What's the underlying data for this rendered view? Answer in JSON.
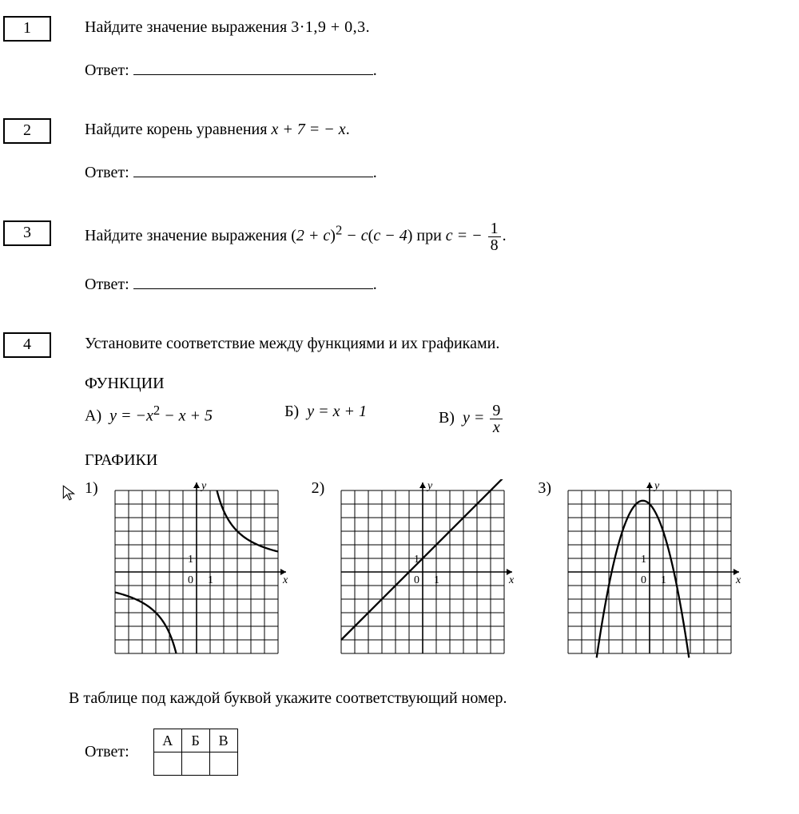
{
  "background_color": "#ffffff",
  "text_color": "#000000",
  "font_family": "Times New Roman",
  "font_size_pt": 15,
  "problems": [
    {
      "number": "1",
      "prompt_pre": "Найдите значение выражения ",
      "expression": "3·1,9 + 0,3",
      "prompt_post": ".",
      "answer_label": "Ответ:"
    },
    {
      "number": "2",
      "prompt_pre": "Найдите корень уравнения ",
      "expression": "x + 7 = − x",
      "prompt_post": ".",
      "answer_label": "Ответ:"
    },
    {
      "number": "3",
      "prompt_pre": "Найдите значение выражения ",
      "expr_main": "(2 + c)",
      "expr_sup": "2",
      "expr_tail": " − c(c − 4)",
      "cond_pre": " при ",
      "cond_var": "c = −",
      "frac_num": "1",
      "frac_den": "8",
      "prompt_post": ".",
      "answer_label": "Ответ:"
    },
    {
      "number": "4",
      "prompt": "Установите соответствие между функциями и их графиками.",
      "func_header": "ФУНКЦИИ",
      "functions": [
        {
          "letter": "А)",
          "lhs": "y = −x",
          "sup": "2",
          "rest": " − x + 5"
        },
        {
          "letter": "Б)",
          "lhs": "y = x + 1",
          "sup": "",
          "rest": ""
        },
        {
          "letter": "В)",
          "lhs": "y = ",
          "frac_num": "9",
          "frac_den": "x"
        }
      ],
      "graph_header": "ГРАФИКИ",
      "graphs": [
        {
          "label": "1)",
          "type": "hyperbola",
          "xlim": [
            -6,
            6
          ],
          "ylim": [
            -6,
            6
          ],
          "grid_step": 1,
          "grid_color": "#000000",
          "grid_width": 1,
          "axis_color": "#000000",
          "axis_width": 1.6,
          "curve_color": "#000000",
          "curve_width": 2.3,
          "k": 9,
          "label_0": "0",
          "label_1": "1",
          "ylabel": "y",
          "xlabel": "x"
        },
        {
          "label": "2)",
          "type": "line",
          "xlim": [
            -6,
            6
          ],
          "ylim": [
            -6,
            6
          ],
          "grid_step": 1,
          "grid_color": "#000000",
          "grid_width": 1,
          "axis_color": "#000000",
          "axis_width": 1.6,
          "curve_color": "#000000",
          "curve_width": 2.3,
          "slope": 1,
          "intercept": 1,
          "label_0": "0",
          "label_1": "1",
          "ylabel": "y",
          "xlabel": "x"
        },
        {
          "label": "3)",
          "type": "parabola",
          "xlim": [
            -6,
            6
          ],
          "ylim": [
            -6,
            6
          ],
          "grid_step": 1,
          "grid_color": "#000000",
          "grid_width": 1,
          "axis_color": "#000000",
          "axis_width": 1.6,
          "curve_color": "#000000",
          "curve_width": 2.3,
          "a": -1,
          "b": -1,
          "c": 5,
          "label_0": "0",
          "label_1": "1",
          "ylabel": "y",
          "xlabel": "x"
        }
      ],
      "after_graphs": "В таблице под каждой буквой укажите соответствующий номер.",
      "answer_label": "Ответ:",
      "table_headers": [
        "А",
        "Б",
        "В"
      ]
    }
  ]
}
